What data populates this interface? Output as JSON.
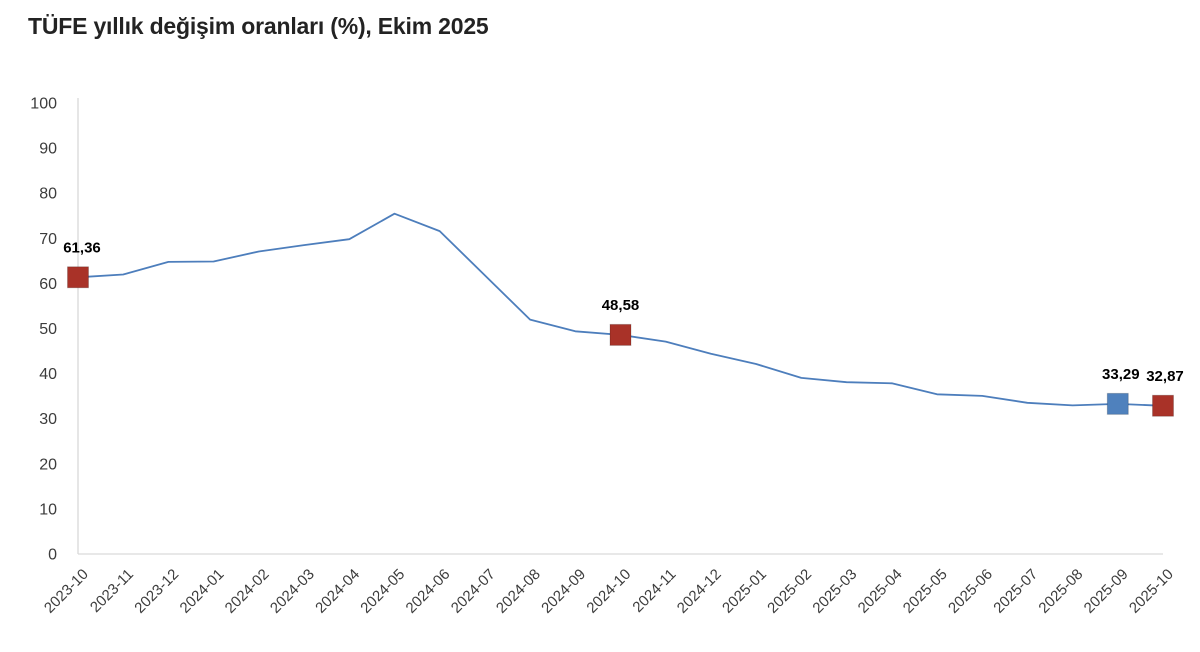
{
  "title": "TÜFE yıllık değişim oranları (%), Ekim 2025",
  "colors": {
    "line": "#4d7ebc",
    "marker_red": "#a93228",
    "marker_blue": "#4f81bd",
    "axis": "#d9d9d9",
    "tick_text": "#3c3c3c",
    "title_text": "#232323",
    "data_label_text": "#000000"
  },
  "chart_data": {
    "type": "line",
    "title": "TÜFE yıllık değişim oranları (%), Ekim 2025",
    "xlabel": "",
    "ylabel": "",
    "ylim": [
      0,
      100
    ],
    "y_ticks": [
      0,
      10,
      20,
      30,
      40,
      50,
      60,
      70,
      80,
      90,
      100
    ],
    "grid": false,
    "legend_position": "none",
    "x": [
      "2023-10",
      "2023-11",
      "2023-12",
      "2024-01",
      "2024-02",
      "2024-03",
      "2024-04",
      "2024-05",
      "2024-06",
      "2024-07",
      "2024-08",
      "2024-09",
      "2024-10",
      "2024-11",
      "2024-12",
      "2025-01",
      "2025-02",
      "2025-03",
      "2025-04",
      "2025-05",
      "2025-06",
      "2025-07",
      "2025-08",
      "2025-09",
      "2025-10"
    ],
    "series": [
      {
        "name": "TÜFE yıllık değişim oranı (%)",
        "values": [
          61.36,
          61.98,
          64.77,
          64.86,
          67.07,
          68.5,
          69.8,
          75.45,
          71.6,
          61.78,
          51.97,
          49.38,
          48.58,
          47.09,
          44.38,
          42.12,
          39.05,
          38.1,
          37.86,
          35.41,
          35.05,
          33.52,
          32.95,
          33.29,
          32.87
        ]
      }
    ],
    "markers": [
      {
        "month": "2023-10",
        "value": 61.36,
        "label": "61,36",
        "color_key": "red"
      },
      {
        "month": "2024-10",
        "value": 48.58,
        "label": "48,58",
        "color_key": "red"
      },
      {
        "month": "2025-09",
        "value": 33.29,
        "label": "33,29",
        "color_key": "blue"
      },
      {
        "month": "2025-10",
        "value": 32.87,
        "label": "32,87",
        "color_key": "red"
      }
    ]
  }
}
